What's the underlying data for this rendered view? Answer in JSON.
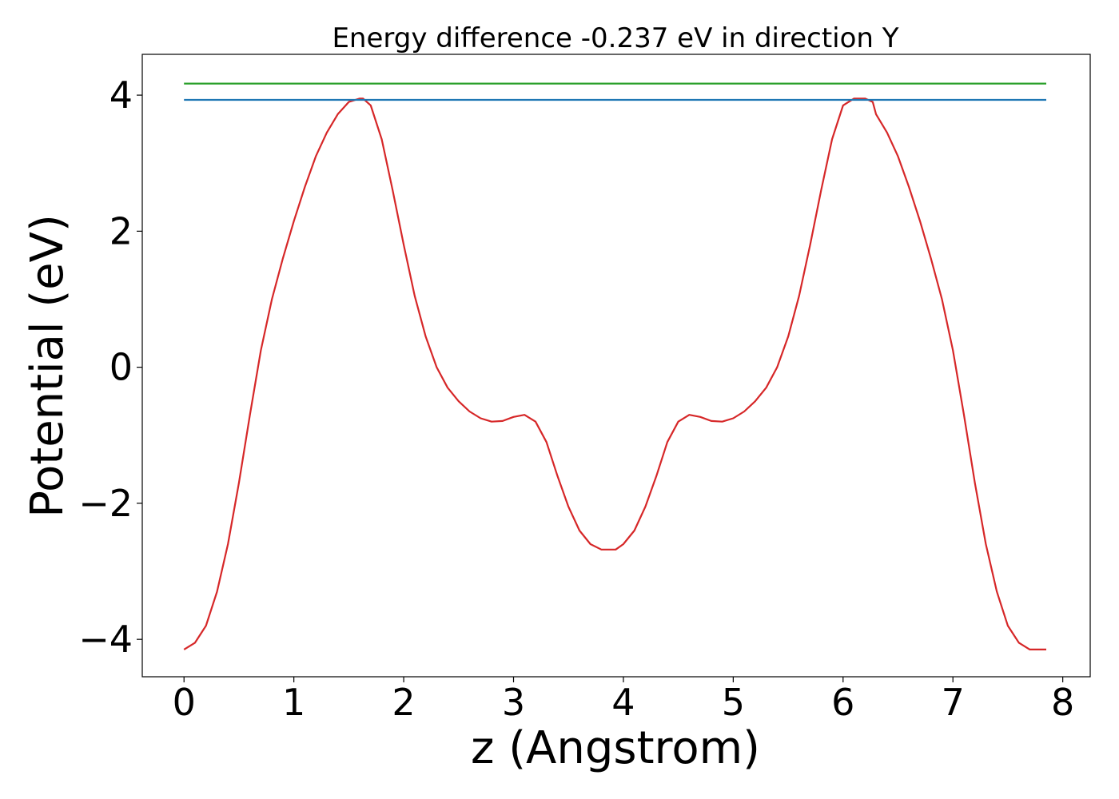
{
  "chart_data": {
    "type": "line",
    "title": "Energy difference -0.237 eV in direction Y",
    "xlabel": "z (Angstrom)",
    "ylabel": "Potential (eV)",
    "xlim": [
      -0.38,
      8.25
    ],
    "ylim": [
      -4.55,
      4.6
    ],
    "x_ticks": [
      0,
      1,
      2,
      3,
      4,
      5,
      6,
      7,
      8
    ],
    "y_ticks": [
      -4,
      -2,
      0,
      2,
      4
    ],
    "x_tick_labels": [
      "0",
      "1",
      "2",
      "3",
      "4",
      "5",
      "6",
      "7",
      "8"
    ],
    "y_tick_labels": [
      "−4",
      "−2",
      "0",
      "2",
      "4"
    ],
    "grid": false,
    "series": [
      {
        "color": "#d62728",
        "x": [
          0.0,
          0.1,
          0.2,
          0.3,
          0.4,
          0.5,
          0.6,
          0.7,
          0.8,
          0.9,
          1.0,
          1.1,
          1.2,
          1.3,
          1.4,
          1.5,
          1.6,
          1.63,
          1.7,
          1.8,
          1.9,
          2.0,
          2.1,
          2.2,
          2.3,
          2.4,
          2.5,
          2.6,
          2.7,
          2.8,
          2.9,
          3.0,
          3.1,
          3.2,
          3.3,
          3.4,
          3.5,
          3.6,
          3.7,
          3.8,
          3.93,
          4.0,
          4.1,
          4.2,
          4.3,
          4.4,
          4.5,
          4.6,
          4.7,
          4.8,
          4.9,
          5.0,
          5.1,
          5.2,
          5.3,
          5.4,
          5.5,
          5.6,
          5.7,
          5.8,
          5.9,
          6.0,
          6.1,
          6.2,
          6.27,
          6.3,
          6.4,
          6.5,
          6.6,
          6.7,
          6.8,
          6.9,
          7.0,
          7.1,
          7.2,
          7.3,
          7.4,
          7.5,
          7.6,
          7.7,
          7.8,
          7.85
        ],
        "y": [
          -4.15,
          -4.05,
          -3.8,
          -3.3,
          -2.6,
          -1.7,
          -0.7,
          0.25,
          1.0,
          1.6,
          2.15,
          2.65,
          3.1,
          3.45,
          3.72,
          3.9,
          3.95,
          3.95,
          3.85,
          3.35,
          2.6,
          1.8,
          1.05,
          0.45,
          0.0,
          -0.3,
          -0.5,
          -0.65,
          -0.75,
          -0.8,
          -0.79,
          -0.73,
          -0.7,
          -0.8,
          -1.1,
          -1.6,
          -2.05,
          -2.4,
          -2.6,
          -2.68,
          -2.68,
          -2.6,
          -2.4,
          -2.05,
          -1.6,
          -1.1,
          -0.8,
          -0.7,
          -0.73,
          -0.79,
          -0.8,
          -0.75,
          -0.65,
          -0.5,
          -0.3,
          0.0,
          0.45,
          1.05,
          1.8,
          2.6,
          3.35,
          3.85,
          3.95,
          3.95,
          3.9,
          3.72,
          3.45,
          3.1,
          2.65,
          2.15,
          1.6,
          1.0,
          0.25,
          -0.7,
          -1.7,
          -2.6,
          -3.3,
          -3.8,
          -4.05,
          -4.15,
          -4.15,
          -4.15
        ]
      },
      {
        "color": "#1f77b4",
        "x": [
          0.0,
          7.85
        ],
        "y": [
          3.93,
          3.93
        ]
      },
      {
        "color": "#2ca02c",
        "x": [
          0.0,
          7.85
        ],
        "y": [
          4.17,
          4.17
        ]
      }
    ]
  }
}
